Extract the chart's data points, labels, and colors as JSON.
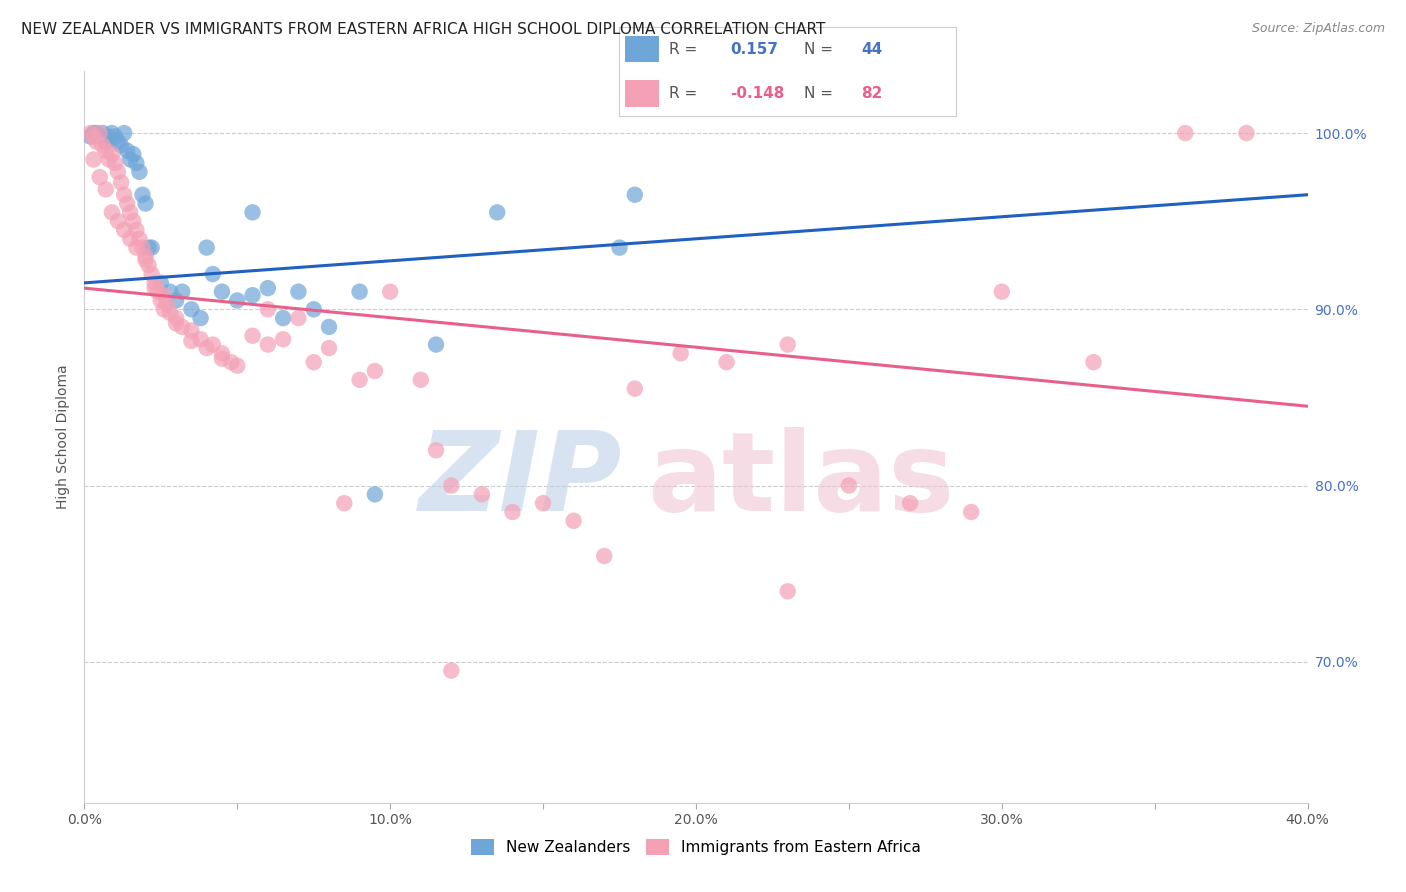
{
  "title": "NEW ZEALANDER VS IMMIGRANTS FROM EASTERN AFRICA HIGH SCHOOL DIPLOMA CORRELATION CHART",
  "source": "Source: ZipAtlas.com",
  "ylabel": "High School Diploma",
  "xlim": [
    0.0,
    40.0
  ],
  "ylim": [
    62.0,
    103.5
  ],
  "yticks_right": [
    70.0,
    80.0,
    90.0,
    100.0
  ],
  "ytick_labels_right": [
    "70.0%",
    "80.0%",
    "90.0%",
    "100.0%"
  ],
  "legend_R_blue": "0.157",
  "legend_N_blue": "44",
  "legend_R_pink": "-0.148",
  "legend_N_pink": "82",
  "blue_color": "#6ea6d8",
  "pink_color": "#f4a0b5",
  "blue_line_color": "#2060c0",
  "pink_line_color": "#e8608a",
  "blue_line_x0": 0.0,
  "blue_line_y0": 91.5,
  "blue_line_x1": 40.0,
  "blue_line_y1": 96.5,
  "pink_line_x0": 0.0,
  "pink_line_y0": 91.2,
  "pink_line_x1": 40.0,
  "pink_line_y1": 84.5,
  "blue_x": [
    0.2,
    0.3,
    0.4,
    0.5,
    0.6,
    0.7,
    0.8,
    0.9,
    1.0,
    1.1,
    1.2,
    1.3,
    1.4,
    1.5,
    1.6,
    1.7,
    1.8,
    1.9,
    2.0,
    2.1,
    2.2,
    2.5,
    2.8,
    3.0,
    3.2,
    3.5,
    3.8,
    4.0,
    4.2,
    4.5,
    5.0,
    5.5,
    6.0,
    6.5,
    7.0,
    7.5,
    8.0,
    9.0,
    9.5,
    11.5,
    13.5,
    17.5,
    18.0,
    5.5
  ],
  "blue_y": [
    99.8,
    100.0,
    100.0,
    99.8,
    100.0,
    99.5,
    99.8,
    100.0,
    99.8,
    99.5,
    99.3,
    100.0,
    99.0,
    98.5,
    98.8,
    98.3,
    97.8,
    96.5,
    96.0,
    93.5,
    93.5,
    91.5,
    91.0,
    90.5,
    91.0,
    90.0,
    89.5,
    93.5,
    92.0,
    91.0,
    90.5,
    90.8,
    91.2,
    89.5,
    91.0,
    90.0,
    89.0,
    91.0,
    79.5,
    88.0,
    95.5,
    93.5,
    96.5,
    95.5
  ],
  "pink_x": [
    0.2,
    0.3,
    0.4,
    0.5,
    0.6,
    0.7,
    0.8,
    0.9,
    1.0,
    1.1,
    1.2,
    1.3,
    1.4,
    1.5,
    1.6,
    1.7,
    1.8,
    1.9,
    2.0,
    2.1,
    2.2,
    2.3,
    2.4,
    2.5,
    2.6,
    2.7,
    2.8,
    3.0,
    3.2,
    3.5,
    3.8,
    4.0,
    4.2,
    4.5,
    4.8,
    5.0,
    5.5,
    6.0,
    6.5,
    7.0,
    7.5,
    8.0,
    9.0,
    9.5,
    10.0,
    11.0,
    11.5,
    12.0,
    13.0,
    14.0,
    15.0,
    16.0,
    17.0,
    18.0,
    19.5,
    21.0,
    23.0,
    25.0,
    27.0,
    29.0,
    30.0,
    33.0,
    36.0,
    38.0,
    0.3,
    0.5,
    0.7,
    0.9,
    1.1,
    1.3,
    1.5,
    1.7,
    2.0,
    2.3,
    2.6,
    3.0,
    3.5,
    4.5,
    6.0,
    8.5,
    12.0,
    23.0
  ],
  "pink_y": [
    100.0,
    99.8,
    99.5,
    100.0,
    99.3,
    99.0,
    98.5,
    98.8,
    98.3,
    97.8,
    97.2,
    96.5,
    96.0,
    95.5,
    95.0,
    94.5,
    94.0,
    93.5,
    93.0,
    92.5,
    92.0,
    91.5,
    91.0,
    90.5,
    90.8,
    90.3,
    89.8,
    89.5,
    89.0,
    88.8,
    88.3,
    87.8,
    88.0,
    87.5,
    87.0,
    86.8,
    88.5,
    88.0,
    88.3,
    89.5,
    87.0,
    87.8,
    86.0,
    86.5,
    91.0,
    86.0,
    82.0,
    80.0,
    79.5,
    78.5,
    79.0,
    78.0,
    76.0,
    85.5,
    87.5,
    87.0,
    88.0,
    80.0,
    79.0,
    78.5,
    91.0,
    87.0,
    100.0,
    100.0,
    98.5,
    97.5,
    96.8,
    95.5,
    95.0,
    94.5,
    94.0,
    93.5,
    92.8,
    91.2,
    90.0,
    89.2,
    88.2,
    87.2,
    90.0,
    79.0,
    69.5,
    74.0
  ]
}
